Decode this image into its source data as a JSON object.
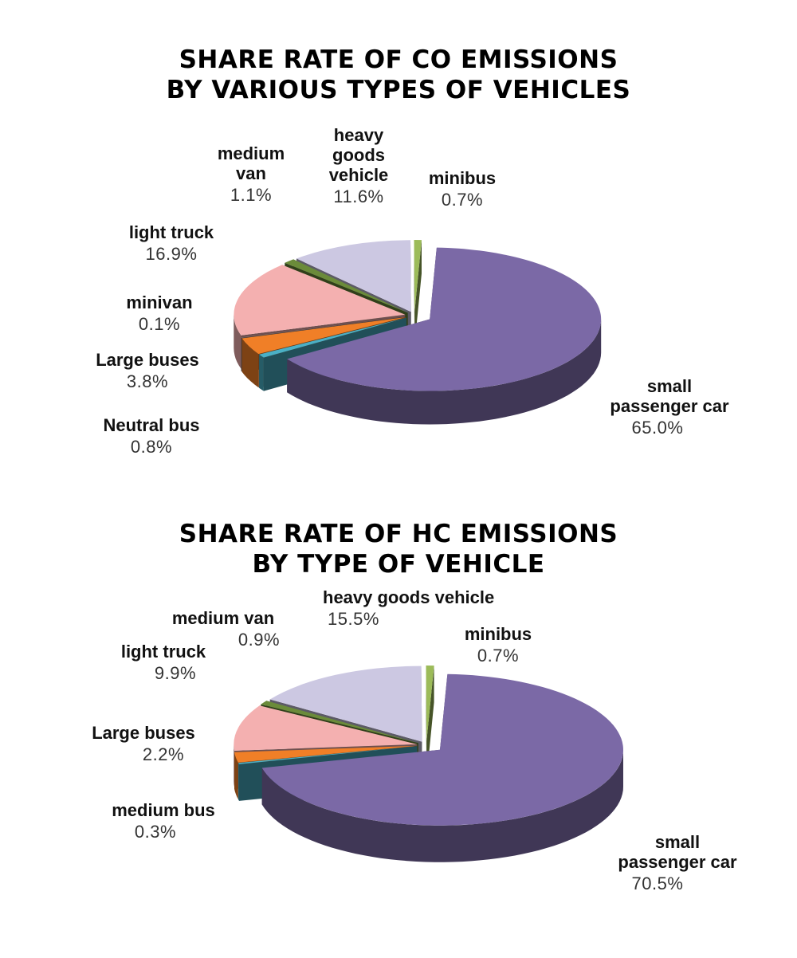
{
  "chart_data": [
    {
      "type": "pie",
      "title": "SHARE RATE OF CO EMISSIONS BY VARIOUS TYPES OF VEHICLES",
      "title_lines": [
        "SHARE RATE OF CO EMISSIONS",
        "BY VARIOUS TYPES OF VEHICLES"
      ],
      "style": "3d-exploded",
      "categories": [
        "small passenger car",
        "Neutral bus",
        "Large buses",
        "minivan",
        "light truck",
        "medium van",
        "heavy goods vehicle",
        "minibus"
      ],
      "values": [
        65.0,
        0.8,
        3.8,
        0.1,
        16.9,
        1.1,
        11.6,
        0.7
      ],
      "unit": "%",
      "labels": [
        {
          "name": "small passenger car",
          "name_lines": [
            "small",
            "passenger car"
          ],
          "value": "65.0%"
        },
        {
          "name": "Neutral bus",
          "name_lines": [
            "Neutral bus"
          ],
          "value": "0.8%"
        },
        {
          "name": "Large buses",
          "name_lines": [
            "Large buses"
          ],
          "value": "3.8%"
        },
        {
          "name": "minivan",
          "name_lines": [
            "minivan"
          ],
          "value": "0.1%"
        },
        {
          "name": "light truck",
          "name_lines": [
            "light truck"
          ],
          "value": "16.9%"
        },
        {
          "name": "medium van",
          "name_lines": [
            "medium",
            "van"
          ],
          "value": "1.1%"
        },
        {
          "name": "heavy goods vehicle",
          "name_lines": [
            "heavy",
            "goods",
            "vehicle"
          ],
          "value": "11.6%"
        },
        {
          "name": "minibus",
          "name_lines": [
            "minibus"
          ],
          "value": "0.7%"
        }
      ],
      "colors": [
        "#7b69a6",
        "#4ab0c6",
        "#f07f27",
        "#857470",
        "#f4b0b0",
        "#6b8b3a",
        "#ccc8e2",
        "#9cbb59"
      ]
    },
    {
      "type": "pie",
      "title": "SHARE RATE OF HC EMISSIONS BY TYPE OF VEHICLE",
      "title_lines": [
        "SHARE RATE OF HC EMISSIONS",
        "BY TYPE OF VEHICLE"
      ],
      "style": "3d-exploded",
      "categories": [
        "small passenger car",
        "medium bus",
        "Large buses",
        "light truck",
        "medium van",
        "heavy goods vehicle",
        "minibus"
      ],
      "values": [
        70.5,
        0.3,
        2.2,
        9.9,
        0.9,
        15.5,
        0.7
      ],
      "unit": "%",
      "labels": [
        {
          "name": "small passenger car",
          "name_lines": [
            "small",
            "passenger car"
          ],
          "value": "70.5%"
        },
        {
          "name": "medium bus",
          "name_lines": [
            "medium bus"
          ],
          "value": "0.3%"
        },
        {
          "name": "Large buses",
          "name_lines": [
            "Large buses"
          ],
          "value": "2.2%"
        },
        {
          "name": "light truck",
          "name_lines": [
            "light truck"
          ],
          "value": "9.9%"
        },
        {
          "name": "medium van",
          "name_lines": [
            "medium van"
          ],
          "value": "0.9%"
        },
        {
          "name": "heavy goods vehicle",
          "name_lines": [
            "heavy goods vehicle"
          ],
          "value": "15.5%"
        },
        {
          "name": "minibus",
          "name_lines": [
            "minibus"
          ],
          "value": "0.7%"
        }
      ],
      "colors": [
        "#7b69a6",
        "#4ab0c6",
        "#f07f27",
        "#f4b0b0",
        "#6b8b3a",
        "#ccc8e2",
        "#9cbb59"
      ]
    }
  ]
}
